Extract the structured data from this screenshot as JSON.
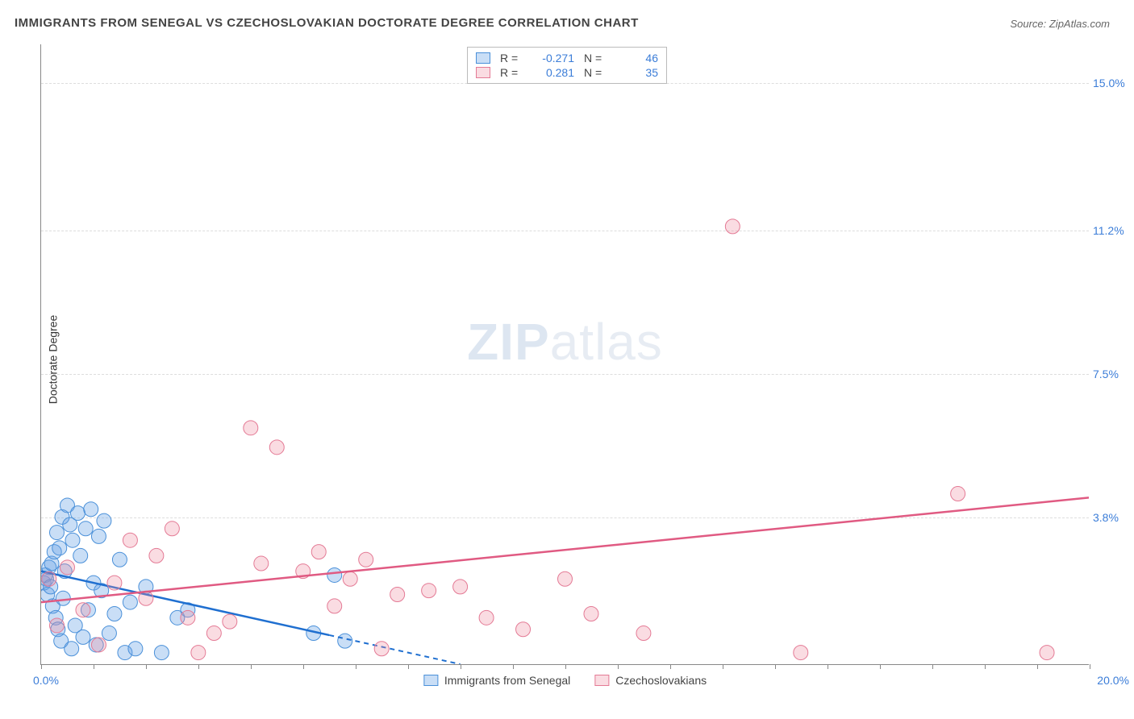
{
  "title": "IMMIGRANTS FROM SENEGAL VS CZECHOSLOVAKIAN DOCTORATE DEGREE CORRELATION CHART",
  "source": "Source: ZipAtlas.com",
  "watermark_zip": "ZIP",
  "watermark_atlas": "atlas",
  "y_axis_title": "Doctorate Degree",
  "chart": {
    "type": "scatter",
    "background_color": "#ffffff",
    "grid_color": "#dddddd",
    "axis_color": "#888888",
    "xlim": [
      0,
      20
    ],
    "ylim": [
      0,
      16
    ],
    "x_min_label": "0.0%",
    "x_max_label": "20.0%",
    "y_ticks": [
      {
        "v": 3.8,
        "label": "3.8%"
      },
      {
        "v": 7.5,
        "label": "7.5%"
      },
      {
        "v": 11.2,
        "label": "11.2%"
      },
      {
        "v": 15.0,
        "label": "15.0%"
      }
    ],
    "x_tick_positions": [
      0,
      1,
      2,
      3,
      4,
      5,
      6,
      7,
      8,
      9,
      10,
      11,
      12,
      13,
      14,
      15,
      16,
      17,
      18,
      19,
      20
    ],
    "series": [
      {
        "name": "Immigrants from Senegal",
        "fill": "rgba(100,160,230,0.35)",
        "stroke": "#4a90d9",
        "line_color": "#1f6fd0",
        "line_dash_after_x": 5.5,
        "marker_radius": 9,
        "R": "-0.271",
        "N": "46",
        "trend": {
          "x1": 0,
          "y1": 2.4,
          "x2": 8.0,
          "y2": 0.0
        },
        "points": [
          [
            0.05,
            2.1
          ],
          [
            0.08,
            2.3
          ],
          [
            0.1,
            2.2
          ],
          [
            0.12,
            1.8
          ],
          [
            0.15,
            2.5
          ],
          [
            0.18,
            2.0
          ],
          [
            0.2,
            2.6
          ],
          [
            0.22,
            1.5
          ],
          [
            0.25,
            2.9
          ],
          [
            0.28,
            1.2
          ],
          [
            0.3,
            3.4
          ],
          [
            0.32,
            0.9
          ],
          [
            0.35,
            3.0
          ],
          [
            0.38,
            0.6
          ],
          [
            0.4,
            3.8
          ],
          [
            0.42,
            1.7
          ],
          [
            0.45,
            2.4
          ],
          [
            0.5,
            4.1
          ],
          [
            0.55,
            3.6
          ],
          [
            0.58,
            0.4
          ],
          [
            0.6,
            3.2
          ],
          [
            0.65,
            1.0
          ],
          [
            0.7,
            3.9
          ],
          [
            0.75,
            2.8
          ],
          [
            0.8,
            0.7
          ],
          [
            0.85,
            3.5
          ],
          [
            0.9,
            1.4
          ],
          [
            0.95,
            4.0
          ],
          [
            1.0,
            2.1
          ],
          [
            1.05,
            0.5
          ],
          [
            1.1,
            3.3
          ],
          [
            1.15,
            1.9
          ],
          [
            1.2,
            3.7
          ],
          [
            1.3,
            0.8
          ],
          [
            1.4,
            1.3
          ],
          [
            1.5,
            2.7
          ],
          [
            1.6,
            0.3
          ],
          [
            1.7,
            1.6
          ],
          [
            1.8,
            0.4
          ],
          [
            2.0,
            2.0
          ],
          [
            2.3,
            0.3
          ],
          [
            2.6,
            1.2
          ],
          [
            2.8,
            1.4
          ],
          [
            5.2,
            0.8
          ],
          [
            5.6,
            2.3
          ],
          [
            5.8,
            0.6
          ]
        ]
      },
      {
        "name": "Czechoslovakians",
        "fill": "rgba(240,140,160,0.30)",
        "stroke": "#e47a95",
        "line_color": "#e05a82",
        "line_dash_after_x": 999,
        "marker_radius": 9,
        "R": "0.281",
        "N": "35",
        "trend": {
          "x1": 0,
          "y1": 1.6,
          "x2": 20.0,
          "y2": 4.3
        },
        "points": [
          [
            0.15,
            2.2
          ],
          [
            0.3,
            1.0
          ],
          [
            0.5,
            2.5
          ],
          [
            0.8,
            1.4
          ],
          [
            1.1,
            0.5
          ],
          [
            1.4,
            2.1
          ],
          [
            1.7,
            3.2
          ],
          [
            2.0,
            1.7
          ],
          [
            2.2,
            2.8
          ],
          [
            2.5,
            3.5
          ],
          [
            2.8,
            1.2
          ],
          [
            3.0,
            0.3
          ],
          [
            3.3,
            0.8
          ],
          [
            3.6,
            1.1
          ],
          [
            4.0,
            6.1
          ],
          [
            4.2,
            2.6
          ],
          [
            4.5,
            5.6
          ],
          [
            5.0,
            2.4
          ],
          [
            5.3,
            2.9
          ],
          [
            5.6,
            1.5
          ],
          [
            5.9,
            2.2
          ],
          [
            6.2,
            2.7
          ],
          [
            6.5,
            0.4
          ],
          [
            6.8,
            1.8
          ],
          [
            7.4,
            1.9
          ],
          [
            8.0,
            2.0
          ],
          [
            8.5,
            1.2
          ],
          [
            9.2,
            0.9
          ],
          [
            10.0,
            2.2
          ],
          [
            10.5,
            1.3
          ],
          [
            11.5,
            0.8
          ],
          [
            13.2,
            11.3
          ],
          [
            14.5,
            0.3
          ],
          [
            17.5,
            4.4
          ],
          [
            19.2,
            0.3
          ]
        ]
      }
    ]
  },
  "legend_series1_name": "Immigrants from Senegal",
  "legend_series2_name": "Czechoslovakians",
  "legend_R_label": "R =",
  "legend_N_label": "N ="
}
